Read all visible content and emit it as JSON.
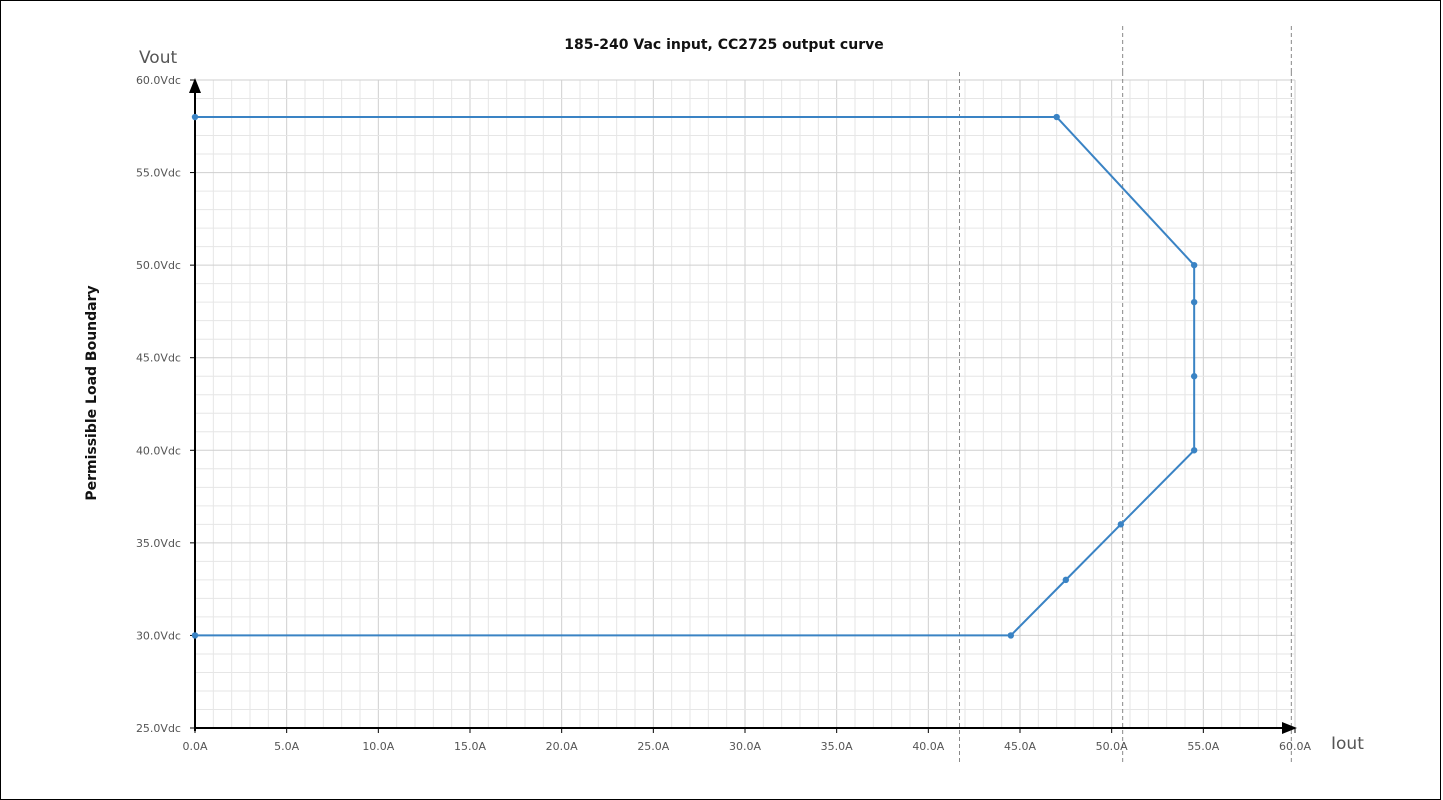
{
  "chart_data": {
    "type": "line",
    "title": "185-240 Vac input, CC2725 output curve",
    "ylabel": "Permissible Load Boundary",
    "y_axis_name": "Vout",
    "x_axis_name": "Iout",
    "xlim": [
      0,
      60
    ],
    "ylim": [
      25,
      60
    ],
    "x_ticks": [
      0,
      5,
      10,
      15,
      20,
      25,
      30,
      35,
      40,
      45,
      50,
      55,
      60
    ],
    "y_ticks": [
      25,
      30,
      35,
      40,
      45,
      50,
      55,
      60
    ],
    "x_tick_labels": [
      "0.0A",
      "5.0A",
      "10.0A",
      "15.0A",
      "20.0A",
      "25.0A",
      "30.0A",
      "35.0A",
      "40.0A",
      "45.0A",
      "50.0A",
      "55.0A",
      "60.0A"
    ],
    "y_tick_labels": [
      "25.0Vdc",
      "30.0Vdc",
      "35.0Vdc",
      "40.0Vdc",
      "45.0Vdc",
      "50.0Vdc",
      "55.0Vdc",
      "60.0Vdc"
    ],
    "grid": true,
    "vertical_reference_lines": [
      41.7,
      50.6,
      59.8
    ],
    "series": [
      {
        "color": "#3a83c4",
        "x": [
          0,
          47,
          54.5,
          54.5,
          54.5,
          54.5,
          50.5,
          47.5,
          44.5,
          0
        ],
        "y": [
          58,
          58,
          50,
          48,
          44,
          40,
          36,
          33,
          30,
          30
        ]
      }
    ]
  }
}
